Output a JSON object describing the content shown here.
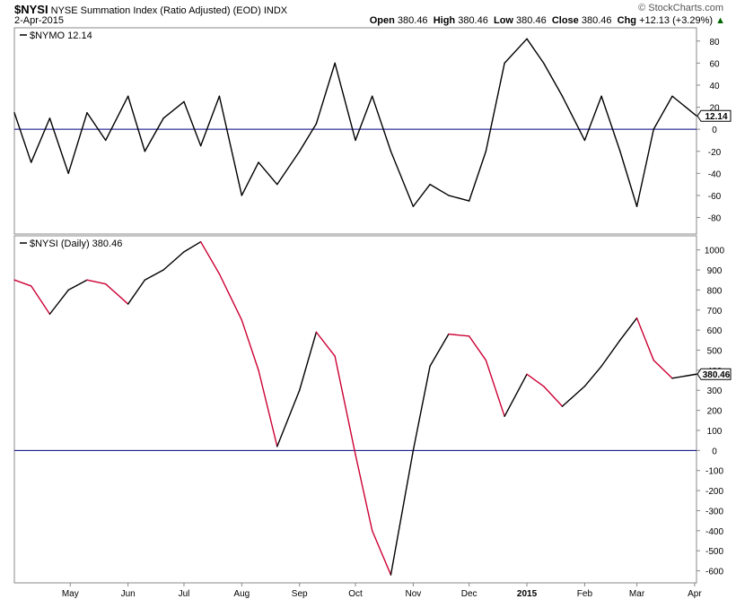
{
  "header": {
    "symbol": "$NYSI",
    "name": "NYSE Summation Index (Ratio Adjusted) (EOD)",
    "exchange": "INDX",
    "date": "2-Apr-2015",
    "watermark": "© StockCharts.com",
    "quote": {
      "open_label": "Open",
      "open": "380.46",
      "high_label": "High",
      "high": "380.46",
      "low_label": "Low",
      "low": "380.46",
      "close_label": "Close",
      "close": "380.46",
      "chg_label": "Chg",
      "chg": "+12.13 (+3.29%)",
      "up_arrow": "▲"
    },
    "up_color": "#006600"
  },
  "colors": {
    "line": "#000000",
    "down": "#cc0033",
    "axis": "#888888",
    "zero": "#000080"
  },
  "chart_data": [
    {
      "type": "line",
      "legend": "$NYMO 12.14",
      "last_value_label": "12.14",
      "ylim": [
        -95,
        92
      ],
      "yticks": [
        80,
        60,
        40,
        20,
        0,
        -20,
        -40,
        -60,
        -80
      ],
      "ytick_labels": [
        "80",
        "60",
        "40",
        "20",
        "0",
        "-20",
        "-40",
        "-60",
        "-80"
      ],
      "zero_line": 0,
      "x_dates": [
        "2014-04-01",
        "2014-04-10",
        "2014-04-20",
        "2014-04-30",
        "2014-05-10",
        "2014-05-20",
        "2014-06-01",
        "2014-06-10",
        "2014-06-20",
        "2014-07-01",
        "2014-07-10",
        "2014-07-20",
        "2014-08-01",
        "2014-08-10",
        "2014-08-20",
        "2014-09-01",
        "2014-09-10",
        "2014-09-20",
        "2014-10-01",
        "2014-10-10",
        "2014-10-20",
        "2014-11-01",
        "2014-11-10",
        "2014-11-20",
        "2014-12-01",
        "2014-12-10",
        "2014-12-20",
        "2015-01-01",
        "2015-01-10",
        "2015-01-20",
        "2015-02-01",
        "2015-02-10",
        "2015-02-20",
        "2015-03-01",
        "2015-03-10",
        "2015-03-20",
        "2015-04-02"
      ],
      "y": [
        15,
        -30,
        10,
        -40,
        15,
        -10,
        30,
        -20,
        10,
        25,
        -15,
        30,
        -60,
        -30,
        -50,
        -20,
        5,
        60,
        -10,
        30,
        -20,
        -70,
        -50,
        -60,
        -65,
        -20,
        60,
        82,
        60,
        30,
        -10,
        30,
        -20,
        -70,
        0,
        30,
        12.14
      ]
    },
    {
      "type": "line",
      "legend": "$NYSI (Daily) 380.46",
      "last_value_label": "380.46",
      "ylim": [
        -660,
        1070
      ],
      "yticks": [
        1000,
        900,
        800,
        700,
        600,
        500,
        400,
        300,
        200,
        100,
        0,
        -100,
        -200,
        -300,
        -400,
        -500,
        -600
      ],
      "ytick_labels": [
        "1000",
        "900",
        "800",
        "700",
        "600",
        "500",
        "400",
        "300",
        "200",
        "100",
        "0",
        "-100",
        "-200",
        "-300",
        "-400",
        "-500",
        "-600"
      ],
      "zero_line": 0,
      "down_color": "#cc0033",
      "x_dates": [
        "2014-04-01",
        "2014-04-10",
        "2014-04-20",
        "2014-04-30",
        "2014-05-10",
        "2014-05-20",
        "2014-06-01",
        "2014-06-10",
        "2014-06-20",
        "2014-07-01",
        "2014-07-10",
        "2014-07-20",
        "2014-08-01",
        "2014-08-10",
        "2014-08-20",
        "2014-09-01",
        "2014-09-10",
        "2014-09-20",
        "2014-10-01",
        "2014-10-10",
        "2014-10-20",
        "2014-11-01",
        "2014-11-10",
        "2014-11-20",
        "2014-12-01",
        "2014-12-10",
        "2014-12-20",
        "2015-01-01",
        "2015-01-10",
        "2015-01-20",
        "2015-02-01",
        "2015-02-10",
        "2015-02-20",
        "2015-03-01",
        "2015-03-10",
        "2015-03-20",
        "2015-04-02"
      ],
      "y": [
        850,
        820,
        680,
        800,
        850,
        830,
        730,
        850,
        900,
        990,
        1040,
        880,
        650,
        400,
        20,
        300,
        590,
        470,
        -20,
        -400,
        -620,
        0,
        420,
        580,
        570,
        450,
        170,
        380,
        320,
        220,
        320,
        420,
        550,
        660,
        450,
        360,
        380.46
      ]
    }
  ],
  "x_axis": {
    "start_date": "2014-04-01",
    "end_date": "2015-04-02",
    "ticks": [
      {
        "date": "2014-05-01",
        "label": "May",
        "bold": false
      },
      {
        "date": "2014-06-01",
        "label": "Jun",
        "bold": false
      },
      {
        "date": "2014-07-01",
        "label": "Jul",
        "bold": false
      },
      {
        "date": "2014-08-01",
        "label": "Aug",
        "bold": false
      },
      {
        "date": "2014-09-01",
        "label": "Sep",
        "bold": false
      },
      {
        "date": "2014-10-01",
        "label": "Oct",
        "bold": false
      },
      {
        "date": "2014-11-01",
        "label": "Nov",
        "bold": false
      },
      {
        "date": "2014-12-01",
        "label": "Dec",
        "bold": false
      },
      {
        "date": "2015-01-01",
        "label": "2015",
        "bold": true
      },
      {
        "date": "2015-02-01",
        "label": "Feb",
        "bold": false
      },
      {
        "date": "2015-03-01",
        "label": "Mar",
        "bold": false
      },
      {
        "date": "2015-04-01",
        "label": "Apr",
        "bold": false
      }
    ]
  }
}
